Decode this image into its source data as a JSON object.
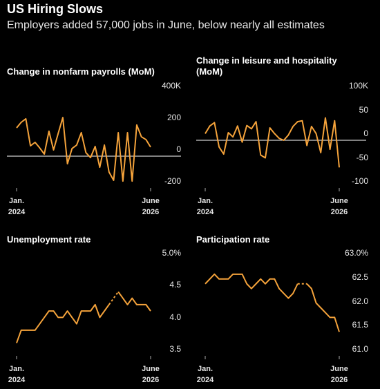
{
  "header": {
    "title": "US Hiring Slows",
    "subtitle": "Employers added 57,000 jobs in June, below nearly all estimates"
  },
  "chart_data": [
    {
      "type": "line",
      "title": "Change in nonfarm payrolls (MoM)",
      "color": "#f5a33b",
      "categories": [
        "Jan.\n2024",
        null,
        null,
        null,
        null,
        null,
        null,
        null,
        null,
        null,
        null,
        null,
        null,
        null,
        null,
        null,
        null,
        null,
        null,
        null,
        null,
        null,
        null,
        null,
        null,
        null,
        null,
        null,
        null,
        "June\n2026"
      ],
      "values": [
        178,
        213,
        235,
        65,
        87,
        52,
        13,
        157,
        39,
        143,
        243,
        -48,
        48,
        70,
        148,
        22,
        -9,
        61,
        -70,
        70,
        -100,
        -152,
        148,
        -157,
        148,
        -157,
        196,
        122,
        104,
        57
      ],
      "ylim": [
        -200,
        400
      ],
      "yticks": [
        {
          "value": 400,
          "label": "400K"
        },
        200,
        0,
        -200
      ],
      "grid": false
    },
    {
      "type": "line",
      "title": "Change in leisure and hospitality (MoM)",
      "color": "#f5a33b",
      "categories": [
        "Jan.\n2024",
        null,
        null,
        null,
        null,
        null,
        null,
        null,
        null,
        null,
        null,
        null,
        null,
        null,
        null,
        null,
        null,
        null,
        null,
        null,
        null,
        null,
        null,
        null,
        null,
        null,
        null,
        null,
        null,
        "June\n2026"
      ],
      "values": [
        14,
        30,
        37,
        -14,
        -29,
        16,
        7,
        30,
        -4,
        31,
        24,
        39,
        -31,
        -37,
        26,
        14,
        4,
        0,
        11,
        29,
        39,
        41,
        -11,
        29,
        14,
        -26,
        47,
        -19,
        41,
        -57
      ],
      "ylim": [
        -100,
        100
      ],
      "yticks": [
        {
          "value": 100,
          "label": "100K"
        },
        50,
        0,
        -50,
        -100
      ],
      "grid": false
    },
    {
      "type": "line",
      "title": "Unemployment rate",
      "color": "#f5a33b",
      "categories": [
        "Jan.\n2024",
        null,
        null,
        null,
        null,
        null,
        null,
        null,
        null,
        null,
        null,
        null,
        null,
        null,
        null,
        null,
        null,
        null,
        null,
        null,
        null,
        null,
        null,
        null,
        null,
        null,
        null,
        null,
        null,
        "June\n2026"
      ],
      "values": [
        3.7,
        3.9,
        3.9,
        3.9,
        3.9,
        4.0,
        4.1,
        4.2,
        4.2,
        4.1,
        4.1,
        4.2,
        4.1,
        4.0,
        4.2,
        4.2,
        4.2,
        4.3,
        4.1,
        4.2,
        4.3,
        null,
        4.5,
        4.4,
        4.3,
        4.4,
        4.3,
        4.3,
        4.3,
        4.2
      ],
      "ylim": [
        3.5,
        5.0
      ],
      "yticks": [
        {
          "value": 5.0,
          "label": "5.0%"
        },
        4.5,
        {
          "value": 4.0,
          "label": "4.0"
        },
        3.5
      ],
      "grid": false
    },
    {
      "type": "line",
      "title": "Participation rate",
      "color": "#f5a33b",
      "categories": [
        "Jan.\n2024",
        null,
        null,
        null,
        null,
        null,
        null,
        null,
        null,
        null,
        null,
        null,
        null,
        null,
        null,
        null,
        null,
        null,
        null,
        null,
        null,
        null,
        null,
        null,
        null,
        null,
        null,
        null,
        null,
        "June\n2026"
      ],
      "values": [
        62.5,
        62.6,
        62.7,
        62.6,
        62.6,
        62.6,
        62.7,
        62.7,
        62.7,
        62.5,
        62.4,
        62.5,
        62.6,
        62.5,
        62.6,
        62.6,
        62.4,
        62.3,
        62.2,
        62.3,
        62.5,
        null,
        62.5,
        62.4,
        62.1,
        62.0,
        61.9,
        61.8,
        61.8,
        61.5
      ],
      "ylim": [
        61.0,
        63.0
      ],
      "yticks": [
        {
          "value": 63.0,
          "label": "63.0%"
        },
        62.5,
        {
          "value": 62.0,
          "label": "62.0"
        },
        61.5,
        {
          "value": 61.0,
          "label": "61.0"
        }
      ],
      "grid": false
    }
  ]
}
